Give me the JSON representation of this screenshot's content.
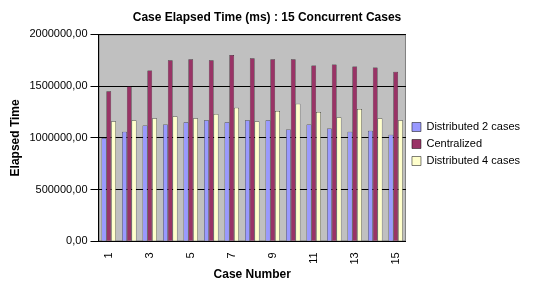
{
  "chart_data": {
    "type": "bar",
    "title": "Case Elapsed Time (ms) : 15 Concurrent Cases",
    "x_label": "Case Number",
    "y_label": "Elapsed Time",
    "categories": [
      "1",
      null,
      "3",
      null,
      "5",
      null,
      "7",
      null,
      "9",
      null,
      "11",
      null,
      "13",
      null,
      "15"
    ],
    "series": [
      {
        "name": "Distributed 2 cases",
        "color": "#9999ff",
        "values": [
          1000000,
          1060000,
          1120000,
          1130000,
          1150000,
          1170000,
          1150000,
          1170000,
          1170000,
          1080000,
          1130000,
          1090000,
          1060000,
          1070000,
          1030000
        ]
      },
      {
        "name": "Centralized",
        "color": "#993366",
        "values": [
          1450000,
          1500000,
          1650000,
          1750000,
          1760000,
          1750000,
          1800000,
          1770000,
          1760000,
          1760000,
          1700000,
          1710000,
          1690000,
          1680000,
          1640000
        ]
      },
      {
        "name": "Distributed 4 cases",
        "color": "#ffffcc",
        "values": [
          1160000,
          1170000,
          1190000,
          1210000,
          1190000,
          1230000,
          1290000,
          1160000,
          1260000,
          1330000,
          1250000,
          1200000,
          1280000,
          1190000,
          1170000
        ]
      }
    ],
    "ylim": [
      0,
      2000000
    ],
    "yticks": [
      {
        "value": 0,
        "label": "0,00"
      },
      {
        "value": 500000,
        "label": "500000,00"
      },
      {
        "value": 1000000,
        "label": "1000000,00"
      },
      {
        "value": 1500000,
        "label": "1500000,00"
      },
      {
        "value": 2000000,
        "label": "2000000,00"
      }
    ],
    "grid": true,
    "legend": "right"
  }
}
